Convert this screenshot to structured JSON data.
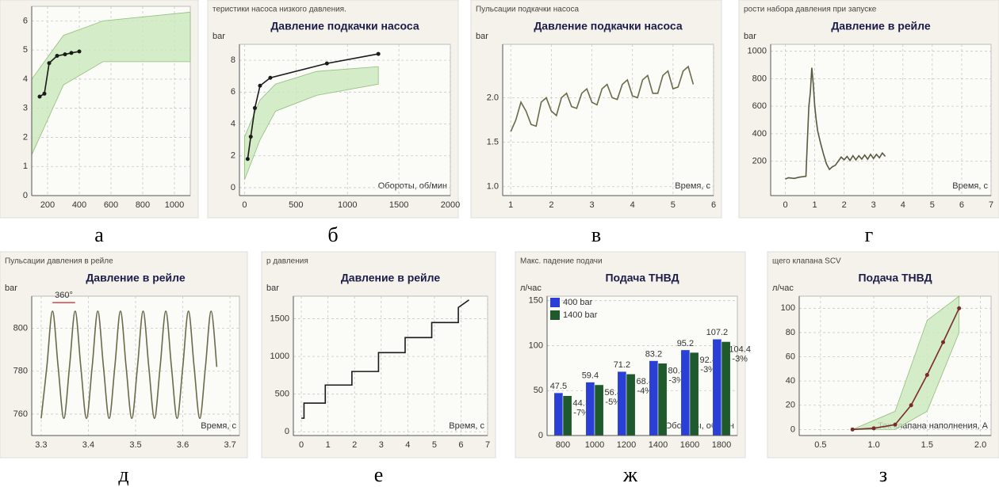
{
  "chart_data": [
    {
      "type": "line",
      "caption": "а",
      "xlim": [
        100,
        1100
      ],
      "ylim": [
        0,
        6.5
      ],
      "yticks": [
        0,
        1,
        2,
        3,
        4,
        5,
        6
      ],
      "xticks": [
        200,
        400,
        600,
        800,
        1000
      ],
      "grid": true,
      "markers": true,
      "x": [
        150,
        180,
        210,
        260,
        310,
        350,
        400
      ],
      "values": [
        3.4,
        3.5,
        4.55,
        4.8,
        4.85,
        4.9,
        4.95
      ],
      "color": "#1a1a1a",
      "band": {
        "x": [
          100,
          300,
          550,
          1100
        ],
        "lower": [
          1.4,
          3.8,
          4.6,
          4.6
        ],
        "upper": [
          4.0,
          5.5,
          6.0,
          6.3
        ],
        "color": "#cbe9bb"
      }
    },
    {
      "type": "line",
      "caption": "б",
      "header": "теристики насоса низкого давления.",
      "title": "Давление подкачки насоса",
      "ylabel": "bar",
      "xlabel": "Обороты, об/мин",
      "xlim": [
        -50,
        2000
      ],
      "ylim": [
        -0.5,
        9
      ],
      "yticks": [
        0,
        2,
        4,
        6,
        8
      ],
      "xticks": [
        0,
        500,
        1000,
        1500,
        2000
      ],
      "grid": true,
      "markers": true,
      "x": [
        30,
        60,
        100,
        150,
        250,
        800,
        1300
      ],
      "values": [
        1.8,
        3.2,
        5,
        6.4,
        6.9,
        7.8,
        8.4
      ],
      "color": "#1a1a1a",
      "band": {
        "x": [
          0,
          150,
          300,
          700,
          1300
        ],
        "lower": [
          0.5,
          3,
          4.8,
          5.8,
          6.5
        ],
        "upper": [
          3.2,
          5.5,
          6.5,
          7.3,
          7.6
        ],
        "color": "#cbe9bb"
      }
    },
    {
      "type": "line",
      "caption": "в",
      "header": "Пульсации подкачки насоса",
      "title": "Давление подкачки насоса",
      "ylabel": "bar",
      "xlabel": "Время, с",
      "xlim": [
        0.8,
        6
      ],
      "ylim": [
        0.9,
        2.6
      ],
      "yticks": [
        {
          "value": 1,
          "label": "1.0"
        },
        {
          "value": 1.5,
          "label": "1.5"
        },
        {
          "value": 2,
          "label": "2.0"
        }
      ],
      "xticks": [
        1,
        2,
        3,
        4,
        5,
        6
      ],
      "grid": true,
      "x": [
        1,
        1.125,
        1.25,
        1.375,
        1.5,
        1.625,
        1.75,
        1.875,
        2,
        2.125,
        2.25,
        2.375,
        2.5,
        2.625,
        2.75,
        2.875,
        3,
        3.125,
        3.25,
        3.375,
        3.5,
        3.625,
        3.75,
        3.875,
        4,
        4.125,
        4.25,
        4.375,
        4.5,
        4.625,
        4.75,
        4.875,
        5,
        5.125,
        5.25,
        5.375,
        5.5
      ],
      "values": [
        1.62,
        1.75,
        1.95,
        1.85,
        1.7,
        1.68,
        1.95,
        2.0,
        1.85,
        1.8,
        2.0,
        2.05,
        1.9,
        1.88,
        2.05,
        2.1,
        1.95,
        1.92,
        2.1,
        2.15,
        2.0,
        1.98,
        2.15,
        2.2,
        2.02,
        2.0,
        2.2,
        2.25,
        2.05,
        2.05,
        2.25,
        2.3,
        2.1,
        2.12,
        2.3,
        2.35,
        2.15
      ],
      "color": "#6b6a4a"
    },
    {
      "type": "line",
      "caption": "г",
      "header": "рости набора давления при запуске",
      "title": "Давление в рейле",
      "ylabel": "bar",
      "xlabel": "Время, с",
      "xlim": [
        -0.5,
        7
      ],
      "ylim": [
        -50,
        1050
      ],
      "yticks": [
        200,
        400,
        600,
        800,
        1000
      ],
      "xticks": [
        0,
        1,
        2,
        3,
        4,
        5,
        6,
        7
      ],
      "grid": true,
      "x": [
        0,
        0.1,
        0.3,
        0.5,
        0.7,
        0.75,
        0.8,
        0.85,
        0.9,
        0.95,
        1.0,
        1.05,
        1.1,
        1.2,
        1.3,
        1.4,
        1.5,
        1.6,
        1.7,
        1.8,
        1.9,
        2.0,
        2.1,
        2.2,
        2.3,
        2.4,
        2.5,
        2.6,
        2.7,
        2.8,
        2.9,
        3.0,
        3.1,
        3.2,
        3.3,
        3.4
      ],
      "values": [
        70,
        80,
        75,
        85,
        90,
        350,
        600,
        700,
        880,
        760,
        600,
        500,
        420,
        330,
        250,
        180,
        140,
        160,
        170,
        200,
        230,
        210,
        235,
        205,
        240,
        210,
        240,
        215,
        245,
        215,
        250,
        220,
        250,
        225,
        260,
        235
      ],
      "color": "#5a5840"
    },
    {
      "type": "line",
      "caption": "д",
      "header": "Пульсации давления в рейле",
      "title": "Давление в рейле",
      "ylabel": "bar",
      "xlabel": "Время, с",
      "xlim": [
        3.28,
        3.72
      ],
      "ylim": [
        750,
        815
      ],
      "yticks": [
        760,
        780,
        800
      ],
      "xticks": [
        3.3,
        3.4,
        3.5,
        3.6,
        3.7
      ],
      "grid": true,
      "smooth": true,
      "x": [
        3.3,
        3.312,
        3.324,
        3.336,
        3.348,
        3.36,
        3.372,
        3.384,
        3.396,
        3.408,
        3.42,
        3.432,
        3.444,
        3.456,
        3.468,
        3.48,
        3.492,
        3.504,
        3.516,
        3.528,
        3.54,
        3.552,
        3.564,
        3.576,
        3.588,
        3.6,
        3.612,
        3.624,
        3.636,
        3.648,
        3.66,
        3.672
      ],
      "values": [
        758,
        782,
        808,
        782,
        758,
        782,
        808,
        782,
        758,
        782,
        808,
        782,
        758,
        782,
        808,
        782,
        758,
        782,
        808,
        782,
        758,
        782,
        808,
        782,
        758,
        782,
        808,
        782,
        758,
        782,
        808,
        782
      ],
      "color": "#6b6a4a",
      "annotation": {
        "text": "360°",
        "x": [
          3.324,
          3.372
        ],
        "y": 812,
        "color": "#cc2222"
      }
    },
    {
      "type": "line",
      "caption": "е",
      "header": "р давления",
      "title": "Давление в рейле",
      "ylabel": "bar",
      "xlabel": "Время, с",
      "xlim": [
        -0.3,
        7
      ],
      "ylim": [
        -50,
        1800
      ],
      "yticks": [
        0,
        500,
        1000,
        1500
      ],
      "xticks": [
        0,
        1,
        2,
        3,
        4,
        5,
        6,
        7
      ],
      "grid": true,
      "x": [
        0,
        0.1,
        0.1,
        0.9,
        0.9,
        1.9,
        1.9,
        2.9,
        2.9,
        3.9,
        3.9,
        4.9,
        4.9,
        5.9,
        5.9,
        6.3
      ],
      "values": [
        180,
        180,
        380,
        380,
        620,
        620,
        800,
        800,
        1050,
        1050,
        1250,
        1250,
        1450,
        1450,
        1650,
        1750
      ],
      "color": "#1a1a1a"
    },
    {
      "type": "bar",
      "caption": "ж",
      "header": "Макс. падение подачи",
      "title": "Подача ТНВД",
      "ylabel": "л/час",
      "xlabel": "Обороты, об/мин",
      "ylim": [
        0,
        155
      ],
      "yticks": [
        0,
        50,
        100,
        150
      ],
      "grid": true,
      "categories": [
        "800",
        "1000",
        "1200",
        "1400",
        "1600",
        "1800"
      ],
      "series": [
        {
          "name": "400 bar",
          "color": "#2a3fd6",
          "values": [
            47.5,
            59.4,
            71.2,
            83.2,
            95.2,
            107.2
          ]
        },
        {
          "name": "1400 bar",
          "color": "#1f5a2c",
          "values": [
            44.3,
            56.4,
            68.4,
            80.4,
            92.4,
            104.4
          ]
        }
      ],
      "drop_labels": [
        "-7%",
        "-5%",
        "-4%",
        "-3%",
        "-3%",
        "-3%"
      ]
    },
    {
      "type": "line",
      "caption": "з",
      "header": "щего клапана SCV",
      "title": "Подача ТНВД",
      "ylabel": "л/час",
      "xlabel": "Ток клапана наполнения, А",
      "xlim": [
        0.3,
        2.1
      ],
      "ylim": [
        -5,
        110
      ],
      "yticks": [
        0,
        20,
        40,
        60,
        80,
        100
      ],
      "xticks": [
        0.5,
        {
          "value": 1,
          "label": "1.0"
        },
        1.5,
        {
          "value": 2,
          "label": "2.0"
        }
      ],
      "grid": true,
      "markers": true,
      "x": [
        0.8,
        1.0,
        1.2,
        1.35,
        1.5,
        1.65,
        1.8
      ],
      "values": [
        0,
        1,
        4,
        20,
        45,
        72,
        100
      ],
      "color": "#7a2a2a",
      "band": {
        "x": [
          0.8,
          1.2,
          1.5,
          1.8
        ],
        "lower": [
          0,
          0,
          15,
          80
        ],
        "upper": [
          0,
          15,
          90,
          110
        ],
        "color": "#cbe9bb"
      }
    }
  ]
}
